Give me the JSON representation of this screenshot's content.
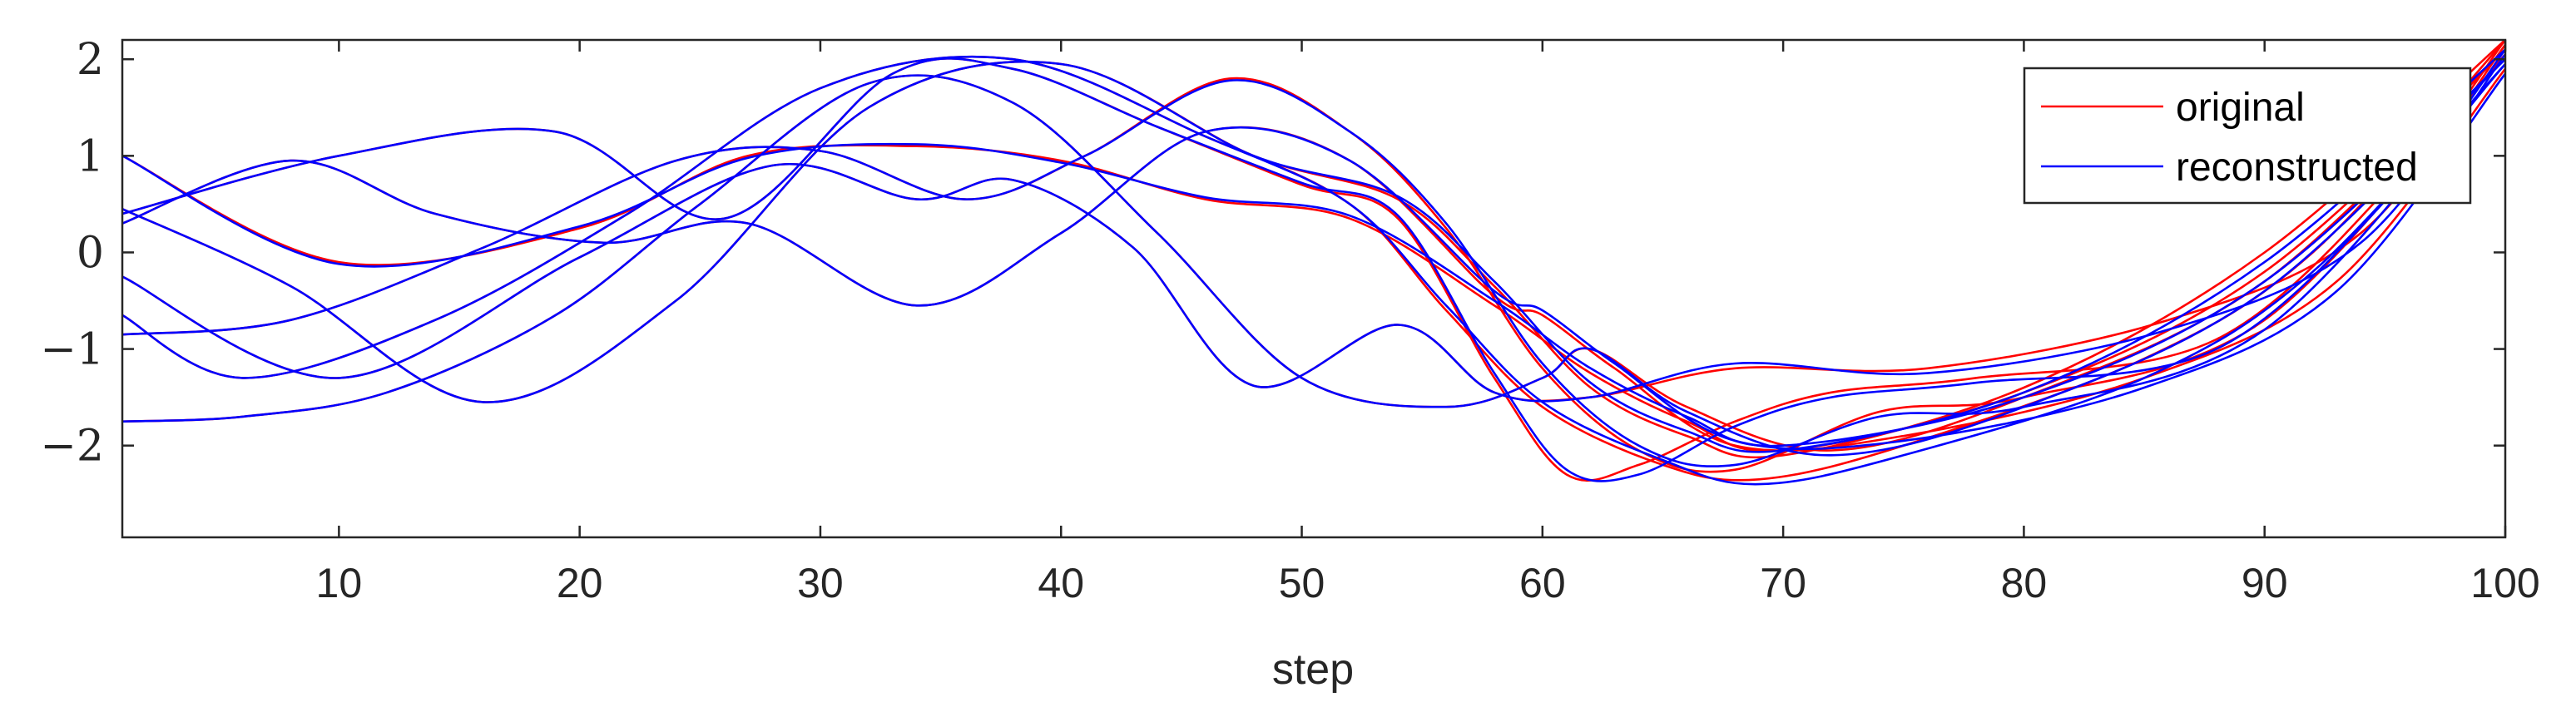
{
  "chart_data": {
    "type": "line",
    "xlabel": "step",
    "ylabel": "",
    "title": "",
    "xlim": [
      1,
      100
    ],
    "ylim": [
      -2.95,
      2.2
    ],
    "xticks": [
      10,
      20,
      30,
      40,
      50,
      60,
      70,
      80,
      90,
      100
    ],
    "yticks": [
      -2,
      -1,
      0,
      1,
      2
    ],
    "ytick_labels": [
      "−2",
      "−1",
      "0",
      "1",
      "2"
    ],
    "grid": false,
    "legend": {
      "position": "top-right",
      "entries": [
        {
          "label": "original",
          "color": "#ff0000"
        },
        {
          "label": "reconstructed",
          "color": "#0000ff"
        }
      ]
    },
    "colors": {
      "original": "#ff0000",
      "reconstructed": "#0000ff",
      "axis": "#262626"
    },
    "series": [
      {
        "group": "original",
        "x": [
          1,
          10,
          20,
          27,
          34,
          40,
          46,
          52,
          58,
          62,
          66,
          70,
          80,
          90,
          100
        ],
        "y": [
          1.0,
          -0.1,
          0.25,
          1.0,
          1.1,
          0.95,
          0.55,
          0.35,
          -0.55,
          -1.25,
          -1.75,
          -2.05,
          -1.45,
          -0.2,
          2.1
        ]
      },
      {
        "group": "original",
        "x": [
          1,
          8,
          16,
          24,
          32,
          40,
          48,
          54,
          58,
          62,
          66,
          70,
          80,
          90,
          100
        ],
        "y": [
          0.45,
          -0.35,
          -1.55,
          -0.5,
          1.5,
          1.95,
          1.0,
          0.55,
          -0.35,
          -1.4,
          -1.9,
          -2.1,
          -1.4,
          0.0,
          2.2
        ]
      },
      {
        "group": "original",
        "x": [
          1,
          6,
          14,
          22,
          30,
          38,
          46,
          52,
          56,
          60,
          65,
          69,
          75,
          85,
          92,
          100
        ],
        "y": [
          -0.65,
          -1.3,
          -0.7,
          0.4,
          1.7,
          2.0,
          1.2,
          0.5,
          -0.6,
          -1.6,
          -2.2,
          -2.35,
          -2.0,
          -1.1,
          0.0,
          2.2
        ]
      },
      {
        "group": "original",
        "x": [
          1,
          10,
          20,
          28,
          34,
          38,
          43,
          48,
          54,
          58,
          62,
          68,
          76,
          86,
          94,
          100
        ],
        "y": [
          -0.25,
          -1.3,
          -0.05,
          0.9,
          0.55,
          0.75,
          0.05,
          -1.38,
          -0.75,
          -1.45,
          -1.5,
          -1.2,
          -1.2,
          -0.7,
          0.2,
          2.15
        ]
      },
      {
        "group": "original",
        "x": [
          1,
          8,
          16,
          24,
          30,
          36,
          41,
          47,
          52,
          56,
          60,
          64,
          68,
          74,
          80,
          90,
          100
        ],
        "y": [
          -0.85,
          -0.7,
          0.05,
          0.95,
          1.05,
          0.55,
          1.0,
          1.8,
          1.25,
          0.25,
          -1.2,
          -2.05,
          -2.25,
          -1.65,
          -1.5,
          -0.7,
          2.05
        ]
      },
      {
        "group": "original",
        "x": [
          1,
          8,
          14,
          21,
          27,
          34,
          40,
          46,
          52,
          58,
          60,
          63,
          68,
          75,
          85,
          93,
          100
        ],
        "y": [
          0.3,
          0.95,
          0.4,
          0.1,
          0.3,
          -0.55,
          0.2,
          1.25,
          0.95,
          -0.45,
          -0.65,
          -1.2,
          -2.0,
          -1.9,
          -1.3,
          -0.3,
          1.9
        ]
      },
      {
        "group": "original",
        "x": [
          1,
          6,
          12,
          19,
          25,
          32,
          38,
          44,
          50,
          56,
          60,
          62,
          66,
          72,
          80,
          90,
          100
        ],
        "y": [
          -1.75,
          -1.7,
          -1.45,
          -0.65,
          0.5,
          1.75,
          1.55,
          0.2,
          -1.3,
          -1.6,
          -1.3,
          -1.0,
          -1.6,
          -2.05,
          -1.5,
          -0.3,
          2.1
        ]
      },
      {
        "group": "original",
        "x": [
          1,
          10,
          19,
          26,
          33,
          38,
          44,
          50,
          54,
          58,
          61,
          64,
          68,
          72,
          78,
          88,
          96,
          100
        ],
        "y": [
          0.4,
          1.0,
          1.25,
          0.35,
          1.85,
          1.9,
          1.3,
          0.7,
          0.35,
          -1.3,
          -2.3,
          -2.2,
          -1.75,
          -1.45,
          -1.3,
          -0.9,
          0.9,
          2.2
        ]
      },
      {
        "group": "reconstructed",
        "x": [
          1,
          10,
          20,
          27,
          34,
          40,
          46,
          52,
          58,
          62,
          66,
          70,
          80,
          90,
          100
        ],
        "y": [
          1.0,
          -0.12,
          0.27,
          0.98,
          1.12,
          0.93,
          0.57,
          0.38,
          -0.5,
          -1.2,
          -1.7,
          -2.0,
          -1.5,
          -0.3,
          2.0
        ]
      },
      {
        "group": "reconstructed",
        "x": [
          1,
          8,
          16,
          24,
          32,
          40,
          48,
          54,
          58,
          62,
          66,
          70,
          80,
          90,
          100
        ],
        "y": [
          0.45,
          -0.35,
          -1.55,
          -0.5,
          1.5,
          1.95,
          1.0,
          0.58,
          -0.3,
          -1.35,
          -1.85,
          -2.05,
          -1.45,
          -0.1,
          2.1
        ]
      },
      {
        "group": "reconstructed",
        "x": [
          1,
          6,
          14,
          22,
          30,
          38,
          46,
          52,
          56,
          60,
          65,
          69,
          75,
          85,
          92,
          100
        ],
        "y": [
          -0.65,
          -1.3,
          -0.7,
          0.4,
          1.7,
          2.0,
          1.2,
          0.5,
          -0.55,
          -1.55,
          -2.15,
          -2.4,
          -2.1,
          -1.3,
          -0.2,
          1.95
        ]
      },
      {
        "group": "reconstructed",
        "x": [
          1,
          10,
          20,
          28,
          34,
          38,
          43,
          48,
          54,
          58,
          62,
          68,
          76,
          86,
          94,
          100
        ],
        "y": [
          -0.25,
          -1.3,
          -0.05,
          0.9,
          0.55,
          0.75,
          0.05,
          -1.38,
          -0.75,
          -1.45,
          -1.5,
          -1.15,
          -1.25,
          -0.8,
          0.1,
          2.05
        ]
      },
      {
        "group": "reconstructed",
        "x": [
          1,
          8,
          16,
          24,
          30,
          36,
          41,
          47,
          52,
          56,
          60,
          64,
          68,
          74,
          80,
          90,
          100
        ],
        "y": [
          -0.85,
          -0.7,
          0.05,
          0.95,
          1.05,
          0.55,
          1.0,
          1.78,
          1.25,
          0.3,
          -1.15,
          -2.0,
          -2.2,
          -1.7,
          -1.6,
          -0.8,
          1.95
        ]
      },
      {
        "group": "reconstructed",
        "x": [
          1,
          8,
          14,
          21,
          27,
          34,
          40,
          46,
          52,
          58,
          60,
          63,
          68,
          75,
          85,
          93,
          100
        ],
        "y": [
          0.3,
          0.95,
          0.4,
          0.1,
          0.3,
          -0.55,
          0.2,
          1.25,
          0.95,
          -0.4,
          -0.6,
          -1.15,
          -1.95,
          -1.95,
          -1.4,
          -0.4,
          1.85
        ]
      },
      {
        "group": "reconstructed",
        "x": [
          1,
          6,
          12,
          19,
          25,
          32,
          38,
          44,
          50,
          56,
          60,
          62,
          66,
          72,
          80,
          90,
          100
        ],
        "y": [
          -1.75,
          -1.7,
          -1.45,
          -0.65,
          0.5,
          1.75,
          1.55,
          0.2,
          -1.3,
          -1.6,
          -1.3,
          -1.0,
          -1.65,
          -2.1,
          -1.6,
          -0.4,
          2.0
        ]
      },
      {
        "group": "reconstructed",
        "x": [
          1,
          10,
          19,
          26,
          33,
          38,
          44,
          50,
          54,
          58,
          61,
          64,
          68,
          72,
          78,
          88,
          96,
          100
        ],
        "y": [
          0.4,
          1.0,
          1.25,
          0.35,
          1.85,
          1.9,
          1.3,
          0.72,
          0.38,
          -1.25,
          -2.25,
          -2.3,
          -1.8,
          -1.5,
          -1.35,
          -1.0,
          0.8,
          2.1
        ]
      }
    ]
  }
}
